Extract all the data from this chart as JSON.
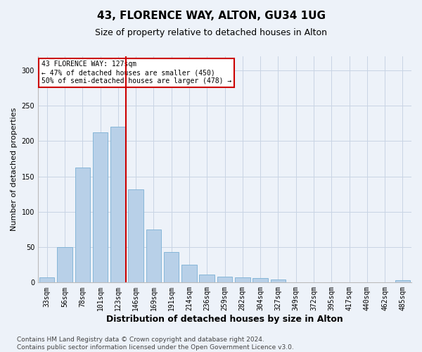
{
  "title": "43, FLORENCE WAY, ALTON, GU34 1UG",
  "subtitle": "Size of property relative to detached houses in Alton",
  "xlabel": "Distribution of detached houses by size in Alton",
  "ylabel": "Number of detached properties",
  "bar_color": "#b8d0e8",
  "bar_edge_color": "#7aafd4",
  "vline_color": "#cc0000",
  "annotation_text": "43 FLORENCE WAY: 127sqm\n← 47% of detached houses are smaller (450)\n50% of semi-detached houses are larger (478) →",
  "annotation_box_color": "white",
  "annotation_box_edge_color": "#cc0000",
  "categories": [
    "33sqm",
    "56sqm",
    "78sqm",
    "101sqm",
    "123sqm",
    "146sqm",
    "169sqm",
    "191sqm",
    "214sqm",
    "236sqm",
    "259sqm",
    "282sqm",
    "304sqm",
    "327sqm",
    "349sqm",
    "372sqm",
    "395sqm",
    "417sqm",
    "440sqm",
    "462sqm",
    "485sqm"
  ],
  "values": [
    7,
    50,
    163,
    212,
    220,
    132,
    75,
    43,
    25,
    11,
    8,
    7,
    6,
    4,
    0,
    0,
    0,
    0,
    0,
    0,
    3
  ],
  "vline_bin_idx": 4,
  "ylim": [
    0,
    320
  ],
  "yticks": [
    0,
    50,
    100,
    150,
    200,
    250,
    300
  ],
  "footer_line1": "Contains HM Land Registry data © Crown copyright and database right 2024.",
  "footer_line2": "Contains public sector information licensed under the Open Government Licence v3.0.",
  "background_color": "#edf2f9",
  "grid_color": "#c8d4e4",
  "title_fontsize": 11,
  "subtitle_fontsize": 9,
  "axis_label_fontsize": 8,
  "tick_fontsize": 7,
  "footer_fontsize": 6.5
}
